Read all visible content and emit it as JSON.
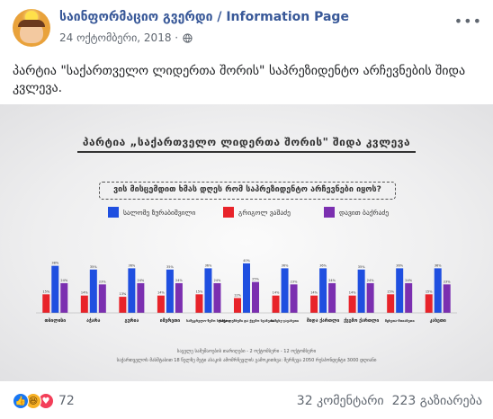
{
  "post": {
    "page_name": "საინფორმაციო გვერდი / Information Page",
    "date": "24 ოქტომბერი, 2018 ·",
    "text": "პარტია \"საქართველო ლიდერთა შორის\" საპრეზიდენტო არჩევნების შიდა კვლევა."
  },
  "image": {
    "title": "პარტია „საქართველო ლიდერთა შორის\" შიდა კვლევა",
    "question": "ვის მისცემდით ხმას დღეს რომ საპრეზიდენტო არჩევნები იყოს?",
    "footnotes": [
      "საველე სამუშაოების თარიღები - 2 ოქტომბერი - 12 ოქტომბერი",
      "საქართველოს მასშტაბით 18 წელზე მეტი ასაკის ამომრჩევლის გამოკითხვა: შერჩევა 2050 რესპონდენტი 3000 დღიანი"
    ]
  },
  "chart_data": {
    "type": "bar",
    "title": "პარტია „საქართველო ლიდერთა შორის\" შიდა კვლევა",
    "categories": [
      "თბილისი",
      "აჭარა",
      "გურია",
      "იმერეთი",
      "სამეგრელო-ზემო სვანეთი",
      "რაჭა-ლეჩხუმი და ქვემო სვანეთი",
      "სამცხე-ჯავახეთი",
      "შიდა ქართლი",
      "ქვემო ქართლი",
      "მცხეთა-მთიანეთი",
      "კახეთი"
    ],
    "series": [
      {
        "name": "სალომე ზურაბიშვილი",
        "color": "#1f4fe0",
        "values": [
          38,
          35,
          36,
          35,
          36,
          40,
          36,
          36,
          35,
          36,
          36
        ]
      },
      {
        "name": "გრიგოლ ვაშაძე",
        "color": "#e8232a",
        "values": [
          15,
          14,
          13,
          14,
          15,
          12,
          14,
          14,
          14,
          15,
          15
        ]
      },
      {
        "name": "დავით ბაქრაძე",
        "color": "#7b2fb0",
        "values": [
          24,
          23,
          24,
          24,
          24,
          25,
          23,
          24,
          24,
          24,
          23
        ]
      }
    ],
    "ylim": [
      0,
      45
    ],
    "grid": false,
    "legend": "top"
  },
  "reactions": {
    "count": "72",
    "like_icon": "like-icon",
    "haha_icon": "haha-icon",
    "love_icon": "love-icon"
  },
  "stats": {
    "comments": "32 კომენტარი",
    "shares": "223 გაზიარება"
  }
}
